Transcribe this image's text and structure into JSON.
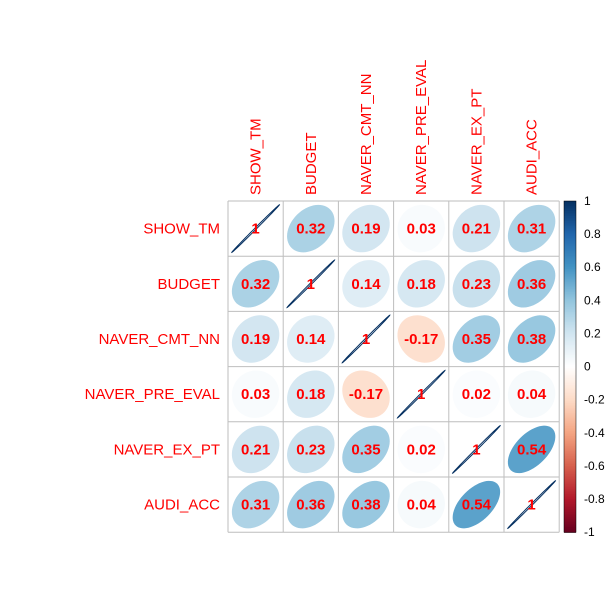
{
  "chart_data": {
    "type": "heatmap",
    "variables": [
      "SHOW_TM",
      "BUDGET",
      "NAVER_CMT_NN",
      "NAVER_PRE_EVAL",
      "NAVER_EX_PT",
      "AUDI_ACC"
    ],
    "matrix": [
      [
        1,
        0.32,
        0.19,
        0.03,
        0.21,
        0.31
      ],
      [
        0.32,
        1,
        0.14,
        0.18,
        0.23,
        0.36
      ],
      [
        0.19,
        0.14,
        1,
        -0.17,
        0.35,
        0.38
      ],
      [
        0.03,
        0.18,
        -0.17,
        1,
        0.02,
        0.04
      ],
      [
        0.21,
        0.23,
        0.35,
        0.02,
        1,
        0.54
      ],
      [
        0.31,
        0.36,
        0.38,
        0.04,
        0.54,
        1
      ]
    ],
    "labels": [
      [
        "1",
        "0.32",
        "0.19",
        "0.03",
        "0.21",
        "0.31"
      ],
      [
        "0.32",
        "1",
        "0.14",
        "0.18",
        "0.23",
        "0.36"
      ],
      [
        "0.19",
        "0.14",
        "1",
        "-0.17",
        "0.35",
        "0.38"
      ],
      [
        "0.03",
        "0.18",
        "-0.17",
        "1",
        "0.02",
        "0.04"
      ],
      [
        "0.21",
        "0.23",
        "0.35",
        "0.02",
        "1",
        "0.54"
      ],
      [
        "0.31",
        "0.36",
        "0.38",
        "0.04",
        "0.54",
        "1"
      ]
    ],
    "colorbar": {
      "range": [
        -1,
        1
      ],
      "ticks": [
        "1",
        "0.8",
        "0.6",
        "0.4",
        "0.2",
        "0",
        "-0.2",
        "-0.4",
        "-0.6",
        "-0.8",
        "-1"
      ]
    },
    "colors": {
      "label": "#ff0000",
      "negative_end": "#67001f",
      "positive_end": "#053061",
      "mid": "#ffffff",
      "grid": "#bebebe"
    },
    "method": "ellipse",
    "legend_position": "right"
  }
}
